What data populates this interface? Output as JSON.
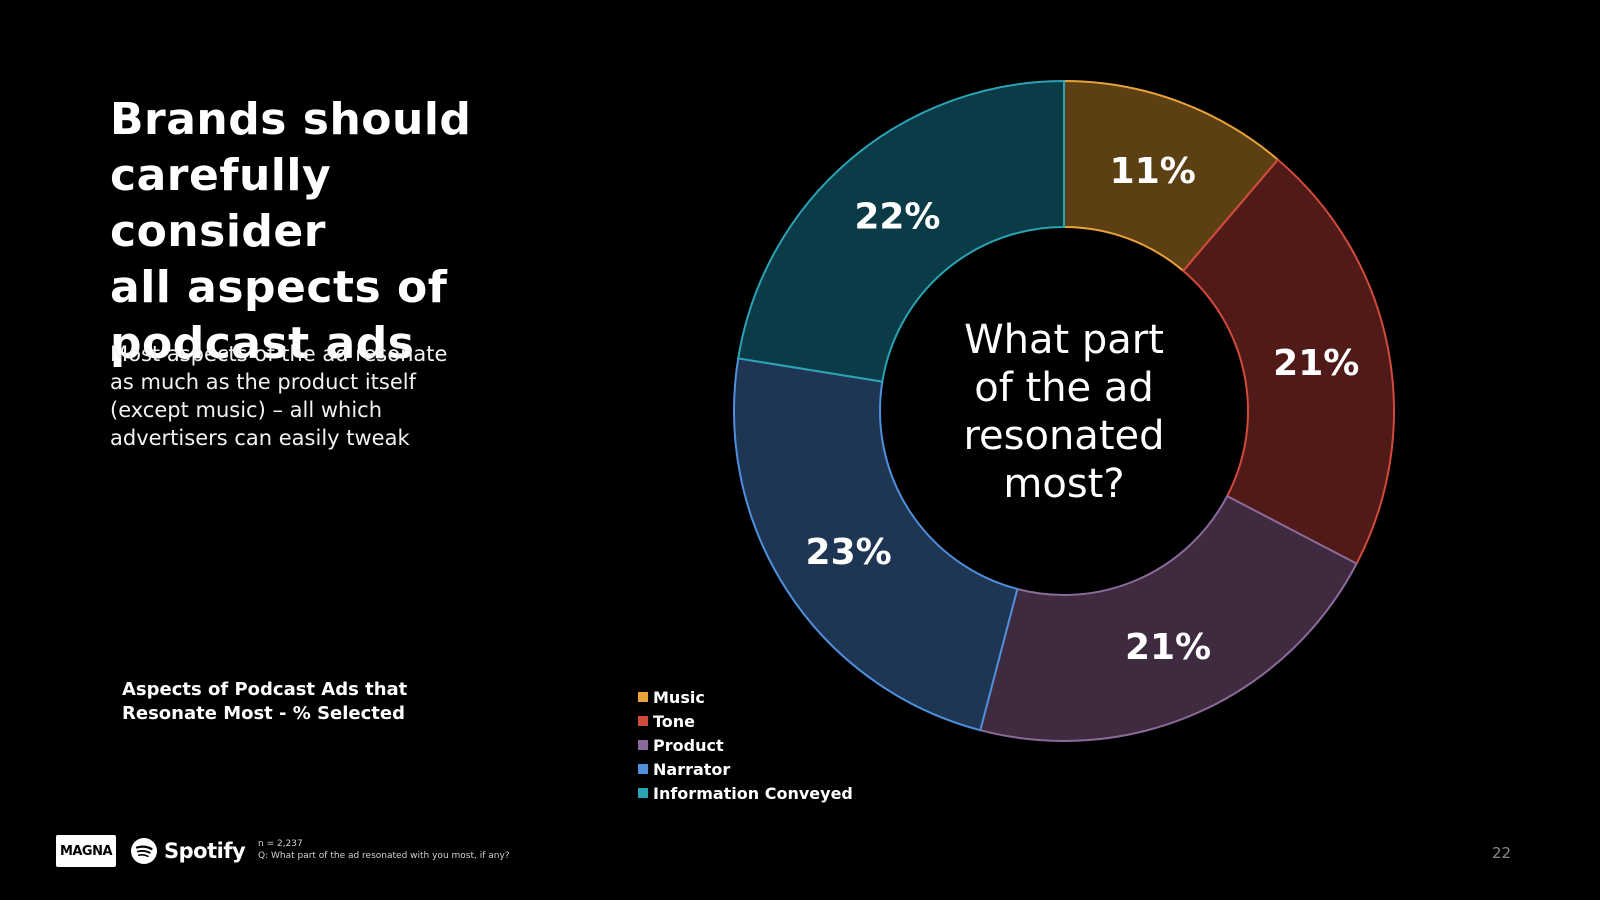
{
  "slide": {
    "title": "Brands should\ncarefully consider\nall aspects of\npodcast ads",
    "subtitle": "Most aspects of the ad resonate\nas much as the product itself\n(except music) – all which\nadvertisers can easily tweak",
    "chart_caption": "Aspects of Podcast Ads that\nResonate Most - % Selected",
    "page_number": "22"
  },
  "footer": {
    "magna_logo_text": "MAGNA",
    "spotify_logo_text": "Spotify",
    "sample_size": "n = 2,237",
    "question": "Q: What part of the ad resonated with you most, if any?"
  },
  "chart_data": {
    "type": "pie",
    "variant": "donut",
    "center_text": [
      "What part",
      "of the ad",
      "resonated",
      "most?"
    ],
    "categories": [
      "Music",
      "Tone",
      "Product",
      "Narrator",
      "Information Conveyed"
    ],
    "values": [
      11,
      21,
      21,
      23,
      22
    ],
    "labels": [
      "11%",
      "21%",
      "21%",
      "23%",
      "22%"
    ],
    "fill_colors": [
      "#5c3f12",
      "#4f1a18",
      "#3e2b3f",
      "#1e3553",
      "#0a3b47"
    ],
    "edge_colors": [
      "#e8a23a",
      "#d24a3c",
      "#8a6a9a",
      "#4f8fdc",
      "#2aa3b4"
    ],
    "legend_position": "bottom-left"
  }
}
